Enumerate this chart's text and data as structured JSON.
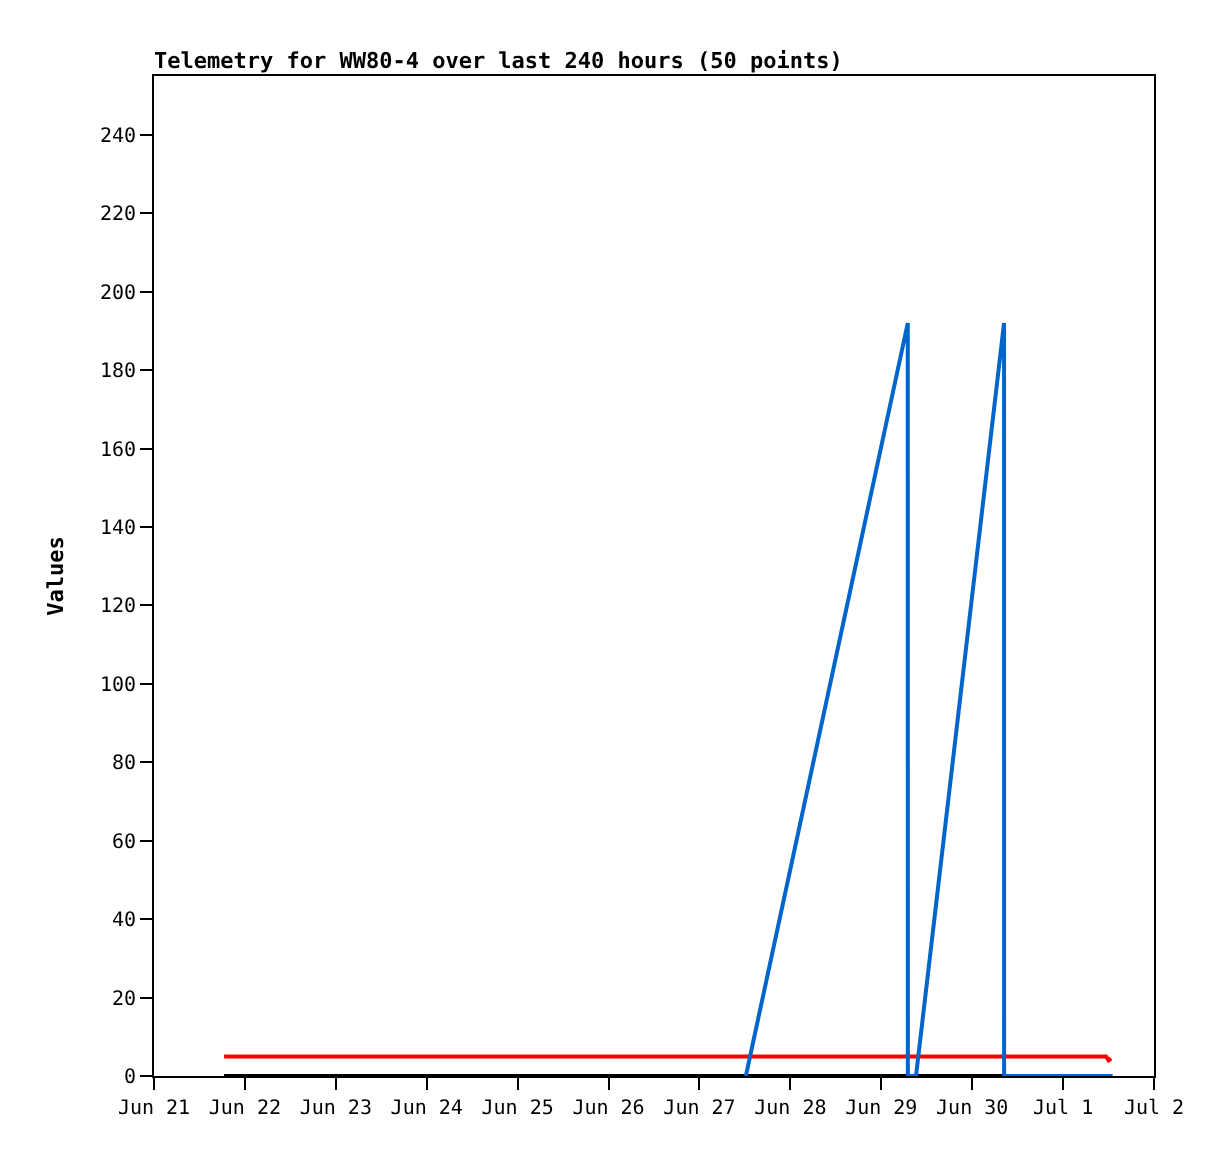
{
  "chart_data": {
    "type": "line",
    "title": "Telemetry for WW80-4 over last 240 hours (50 points)",
    "ylabel": "Values",
    "xlim": [
      "--06-21",
      "--07-02"
    ],
    "xticks": [
      {
        "value": "--06-21",
        "label": "Jun 21"
      },
      {
        "value": "--06-22",
        "label": "Jun 22"
      },
      {
        "value": "--06-23",
        "label": "Jun 23"
      },
      {
        "value": "--06-24",
        "label": "Jun 24"
      },
      {
        "value": "--06-25",
        "label": "Jun 25"
      },
      {
        "value": "--06-26",
        "label": "Jun 26"
      },
      {
        "value": "--06-27",
        "label": "Jun 27"
      },
      {
        "value": "--06-28",
        "label": "Jun 28"
      },
      {
        "value": "--06-29",
        "label": "Jun 29"
      },
      {
        "value": "--06-30",
        "label": "Jun 30"
      },
      {
        "value": "--07-01",
        "label": "Jul 1"
      },
      {
        "value": "--07-02",
        "label": "Jul 2"
      }
    ],
    "ylim": [
      0,
      255
    ],
    "yticks": [
      0,
      20,
      40,
      60,
      80,
      100,
      120,
      140,
      160,
      180,
      200,
      220,
      240
    ],
    "marker": "none",
    "line_style": "solid",
    "series": [
      {
        "color": "#000000",
        "x": [
          "--06-21T18:30",
          "--07-01T13:00"
        ],
        "values": [
          0,
          0
        ]
      },
      {
        "color": "#ff0000",
        "x": [
          "--06-21T18:30",
          "--07-01T11:20",
          "--07-01T12:00",
          "--07-01T12:40"
        ],
        "values": [
          5,
          5,
          4,
          4.5
        ]
      },
      {
        "color": "#0066cc",
        "x": [
          "--06-27T12:15",
          "--06-29T07:00",
          "--06-29T07:01",
          "--06-29T09:10",
          "--06-30T08:25",
          "--06-30T08:26",
          "--07-01T13:00"
        ],
        "values": [
          0,
          192,
          0,
          0,
          192,
          0,
          0
        ]
      }
    ]
  }
}
